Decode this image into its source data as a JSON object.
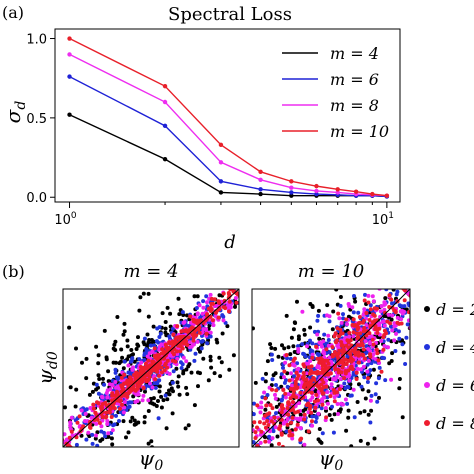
{
  "chart_data": [
    {
      "type": "line",
      "panel_label": "(a)",
      "title": "Spectral Loss",
      "xlabel": "d",
      "ylabel": "σ_d",
      "xscale": "log",
      "xlim": [
        0.9,
        11
      ],
      "ylim": [
        -0.03,
        1.06
      ],
      "x_tick_labels": [
        "10^0",
        "10^1"
      ],
      "y_ticks": [
        0.0,
        0.5,
        1.0
      ],
      "y_tick_labels": [
        "0.0",
        "0.5",
        "1.0"
      ],
      "legend_position": "upper right",
      "grid": false,
      "x": [
        1,
        2,
        3,
        4,
        5,
        6,
        7,
        8,
        9,
        10
      ],
      "series": [
        {
          "name": "m = 4",
          "color": "#000000",
          "values": [
            0.52,
            0.24,
            0.03,
            0.02,
            0.01,
            0.01,
            0.01,
            0.01,
            0.01,
            0.005
          ]
        },
        {
          "name": "m = 6",
          "color": "#1f22d6",
          "values": [
            0.76,
            0.45,
            0.1,
            0.05,
            0.03,
            0.02,
            0.015,
            0.01,
            0.01,
            0.005
          ]
        },
        {
          "name": "m = 8",
          "color": "#ee2ef0",
          "values": [
            0.9,
            0.6,
            0.22,
            0.11,
            0.06,
            0.04,
            0.03,
            0.02,
            0.015,
            0.01
          ]
        },
        {
          "name": "m = 10",
          "color": "#e8202a",
          "values": [
            1.0,
            0.7,
            0.33,
            0.16,
            0.1,
            0.07,
            0.05,
            0.035,
            0.02,
            0.01
          ]
        }
      ]
    },
    {
      "type": "scatter",
      "panel_label": "(b)",
      "title": "m = 4",
      "xlabel": "ψ0",
      "ylabel": "ψd0",
      "show_axis_ticks": false,
      "diagonal_line": true,
      "series": [
        {
          "name": "d = 2",
          "color": "#000000",
          "spread": 0.22
        },
        {
          "name": "d = 4",
          "color": "#2233dd",
          "spread": 0.09
        },
        {
          "name": "d = 6",
          "color": "#ee22ee",
          "spread": 0.06
        },
        {
          "name": "d = 8",
          "color": "#ee1c2e",
          "spread": 0.04
        }
      ]
    },
    {
      "type": "scatter",
      "title": "m = 10",
      "xlabel": "ψ0",
      "show_axis_ticks": false,
      "diagonal_line": true,
      "legend_position": "right",
      "series": [
        {
          "name": "d = 2",
          "color": "#000000",
          "spread": 0.3
        },
        {
          "name": "d = 4",
          "color": "#2233dd",
          "spread": 0.2
        },
        {
          "name": "d = 6",
          "color": "#ee22ee",
          "spread": 0.15
        },
        {
          "name": "d = 8",
          "color": "#ee1c2e",
          "spread": 0.11
        }
      ]
    }
  ]
}
